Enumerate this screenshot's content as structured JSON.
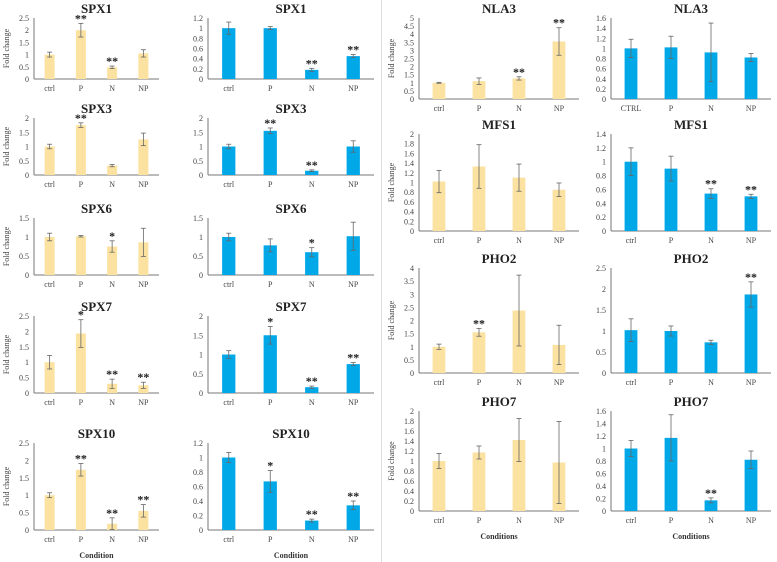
{
  "colors": {
    "yellow": "#fbe2a0",
    "blue": "#00a8e8",
    "axis": "#777777",
    "error": "#666666"
  },
  "chart_data": [
    {
      "type": "bar",
      "title": "SPX1",
      "color": "yellow",
      "ylabel": "Fold change",
      "xlabel": "",
      "categories": [
        "ctrl",
        "P",
        "N",
        "NP"
      ],
      "values": [
        1,
        2,
        0.48,
        1.05
      ],
      "errors": [
        0.1,
        0.28,
        0.05,
        0.15
      ],
      "significance": [
        "",
        "**",
        "**",
        ""
      ],
      "ylim": [
        0,
        2.5
      ],
      "ytick_step": 0.5
    },
    {
      "type": "bar",
      "title": "SPX1",
      "color": "blue",
      "ylabel": "",
      "xlabel": "",
      "categories": [
        "ctrl",
        "P",
        "N",
        "NP"
      ],
      "values": [
        1,
        1,
        0.18,
        0.45
      ],
      "errors": [
        0.12,
        0.03,
        0.03,
        0.03
      ],
      "significance": [
        "",
        "",
        "**",
        "**"
      ],
      "ylim": [
        0,
        1.2
      ],
      "ytick_step": 0.2
    },
    {
      "type": "bar",
      "title": "SPX3",
      "color": "yellow",
      "ylabel": "Fold change",
      "xlabel": "",
      "categories": [
        "ctrl",
        "P",
        "N",
        "NP"
      ],
      "values": [
        1,
        1.75,
        0.33,
        1.25
      ],
      "errors": [
        0.08,
        0.08,
        0.04,
        0.22
      ],
      "significance": [
        "",
        "**",
        "",
        ""
      ],
      "ylim": [
        0,
        2
      ],
      "ytick_step": 0.5
    },
    {
      "type": "bar",
      "title": "SPX3",
      "color": "blue",
      "ylabel": "",
      "xlabel": "",
      "categories": [
        "ctrl",
        "P",
        "N",
        "NP"
      ],
      "values": [
        1,
        1.55,
        0.15,
        1.0
      ],
      "errors": [
        0.08,
        0.1,
        0.03,
        0.2
      ],
      "significance": [
        "",
        "**",
        "**",
        ""
      ],
      "ylim": [
        0,
        2
      ],
      "ytick_step": 0.5
    },
    {
      "type": "bar",
      "title": "SPX6",
      "color": "yellow",
      "ylabel": "Fold change",
      "xlabel": "",
      "categories": [
        "ctrl",
        "P",
        "N",
        "NP"
      ],
      "values": [
        1,
        1.02,
        0.75,
        0.86
      ],
      "errors": [
        0.1,
        0.02,
        0.15,
        0.37
      ],
      "significance": [
        "",
        "",
        "*",
        ""
      ],
      "ylim": [
        0,
        1.5
      ],
      "ytick_step": 0.5
    },
    {
      "type": "bar",
      "title": "SPX6",
      "color": "blue",
      "ylabel": "",
      "xlabel": "",
      "categories": [
        "ctrl",
        "P",
        "N",
        "NP"
      ],
      "values": [
        1,
        0.78,
        0.6,
        1.02
      ],
      "errors": [
        0.1,
        0.17,
        0.12,
        0.37
      ],
      "significance": [
        "",
        "",
        "*",
        ""
      ],
      "ylim": [
        0,
        1.5
      ],
      "ytick_step": 0.5
    },
    {
      "type": "bar",
      "title": "SPX7",
      "color": "yellow",
      "ylabel": "Fold change",
      "xlabel": "",
      "categories": [
        "ctrl",
        "P",
        "N",
        "NP"
      ],
      "values": [
        1,
        1.93,
        0.3,
        0.25
      ],
      "errors": [
        0.22,
        0.45,
        0.15,
        0.1
      ],
      "significance": [
        "",
        "*",
        "**",
        "**"
      ],
      "ylim": [
        0,
        2.5
      ],
      "ytick_step": 0.5
    },
    {
      "type": "bar",
      "title": "SPX7",
      "color": "blue",
      "ylabel": "",
      "xlabel": "",
      "categories": [
        "ctrl",
        "P",
        "N",
        "NP"
      ],
      "values": [
        1,
        1.5,
        0.15,
        0.75
      ],
      "errors": [
        0.1,
        0.23,
        0.03,
        0.04
      ],
      "significance": [
        "",
        "*",
        "**",
        "**"
      ],
      "ylim": [
        0,
        2
      ],
      "ytick_step": 0.5
    },
    {
      "type": "bar",
      "title": "SPX10",
      "color": "yellow",
      "ylabel": "Fold change",
      "xlabel": "Condition",
      "categories": [
        "ctrl",
        "P",
        "N",
        "NP"
      ],
      "values": [
        1,
        1.73,
        0.18,
        0.55
      ],
      "errors": [
        0.07,
        0.18,
        0.17,
        0.18
      ],
      "significance": [
        "",
        "**",
        "**",
        "**"
      ],
      "ylim": [
        0,
        2.5
      ],
      "ytick_step": 0.5
    },
    {
      "type": "bar",
      "title": "SPX10",
      "color": "blue",
      "ylabel": "",
      "xlabel": "Condition",
      "categories": [
        "ctrl",
        "P",
        "N",
        "NP"
      ],
      "values": [
        1,
        0.67,
        0.13,
        0.34
      ],
      "errors": [
        0.07,
        0.15,
        0.02,
        0.06
      ],
      "significance": [
        "",
        "*",
        "**",
        "**"
      ],
      "ylim": [
        0,
        1.2
      ],
      "ytick_step": 0.2
    },
    {
      "type": "bar",
      "title": "NLA3",
      "color": "yellow",
      "ylabel": "Fold change",
      "xlabel": "",
      "categories": [
        "ctrl",
        "P",
        "N",
        "NP"
      ],
      "values": [
        1,
        1.1,
        1.27,
        3.55
      ],
      "errors": [
        0.03,
        0.2,
        0.1,
        0.85
      ],
      "significance": [
        "",
        "",
        "**",
        "**"
      ],
      "ylim": [
        0,
        5
      ],
      "ytick_step": 0.5
    },
    {
      "type": "bar",
      "title": "NLA3",
      "color": "blue",
      "ylabel": "",
      "xlabel": "",
      "categories": [
        "CTRL",
        "P",
        "N",
        "NP"
      ],
      "values": [
        1,
        1.02,
        0.92,
        0.82
      ],
      "errors": [
        0.18,
        0.22,
        0.58,
        0.08
      ],
      "significance": [
        "",
        "",
        "",
        ""
      ],
      "ylim": [
        0,
        1.6
      ],
      "ytick_step": 0.2
    },
    {
      "type": "bar",
      "title": "MFS1",
      "color": "yellow",
      "ylabel": "Fold change",
      "xlabel": "",
      "categories": [
        "ctrl",
        "P",
        "N",
        "NP"
      ],
      "values": [
        1.02,
        1.33,
        1.1,
        0.85
      ],
      "errors": [
        0.23,
        0.45,
        0.28,
        0.14
      ],
      "significance": [
        "",
        "",
        "",
        ""
      ],
      "ylim": [
        0,
        2
      ],
      "ytick_step": 0.2
    },
    {
      "type": "bar",
      "title": "MFS1",
      "color": "blue",
      "ylabel": "",
      "xlabel": "",
      "categories": [
        "ctrl",
        "P",
        "N",
        "NP"
      ],
      "values": [
        1,
        0.9,
        0.54,
        0.5
      ],
      "errors": [
        0.2,
        0.18,
        0.07,
        0.03
      ],
      "significance": [
        "",
        "",
        "**",
        "**"
      ],
      "ylim": [
        0,
        1.4
      ],
      "ytick_step": 0.2
    },
    {
      "type": "bar",
      "title": "PHO2",
      "color": "yellow",
      "ylabel": "Fold change",
      "xlabel": "",
      "categories": [
        "ctrl",
        "P",
        "N",
        "NP"
      ],
      "values": [
        1,
        1.55,
        2.38,
        1.07
      ],
      "errors": [
        0.1,
        0.15,
        1.35,
        0.75
      ],
      "significance": [
        "",
        "**",
        "",
        ""
      ],
      "ylim": [
        0,
        4
      ],
      "ytick_step": 0.5
    },
    {
      "type": "bar",
      "title": "PHO2",
      "color": "blue",
      "ylabel": "",
      "xlabel": "",
      "categories": [
        "ctrl",
        "P",
        "N",
        "NP"
      ],
      "values": [
        1.02,
        1.0,
        0.73,
        1.87
      ],
      "errors": [
        0.27,
        0.12,
        0.05,
        0.3
      ],
      "significance": [
        "",
        "",
        "",
        "**"
      ],
      "ylim": [
        0,
        2.5
      ],
      "ytick_step": 0.5
    },
    {
      "type": "bar",
      "title": "PHO7",
      "color": "yellow",
      "ylabel": "Fold change",
      "xlabel": "Conditions",
      "categories": [
        "ctrl",
        "P",
        "N",
        "NP"
      ],
      "values": [
        1,
        1.17,
        1.42,
        0.97
      ],
      "errors": [
        0.15,
        0.13,
        0.43,
        0.82
      ],
      "significance": [
        "",
        "",
        "",
        ""
      ],
      "ylim": [
        0,
        2
      ],
      "ytick_step": 0.2
    },
    {
      "type": "bar",
      "title": "PHO7",
      "color": "blue",
      "ylabel": "",
      "xlabel": "Conditions",
      "categories": [
        "ctrl",
        "P",
        "N",
        "NP"
      ],
      "values": [
        1,
        1.17,
        0.17,
        0.82
      ],
      "errors": [
        0.13,
        0.37,
        0.04,
        0.14
      ],
      "significance": [
        "",
        "",
        "**",
        ""
      ],
      "ylim": [
        0,
        1.6
      ],
      "ytick_step": 0.2
    }
  ]
}
